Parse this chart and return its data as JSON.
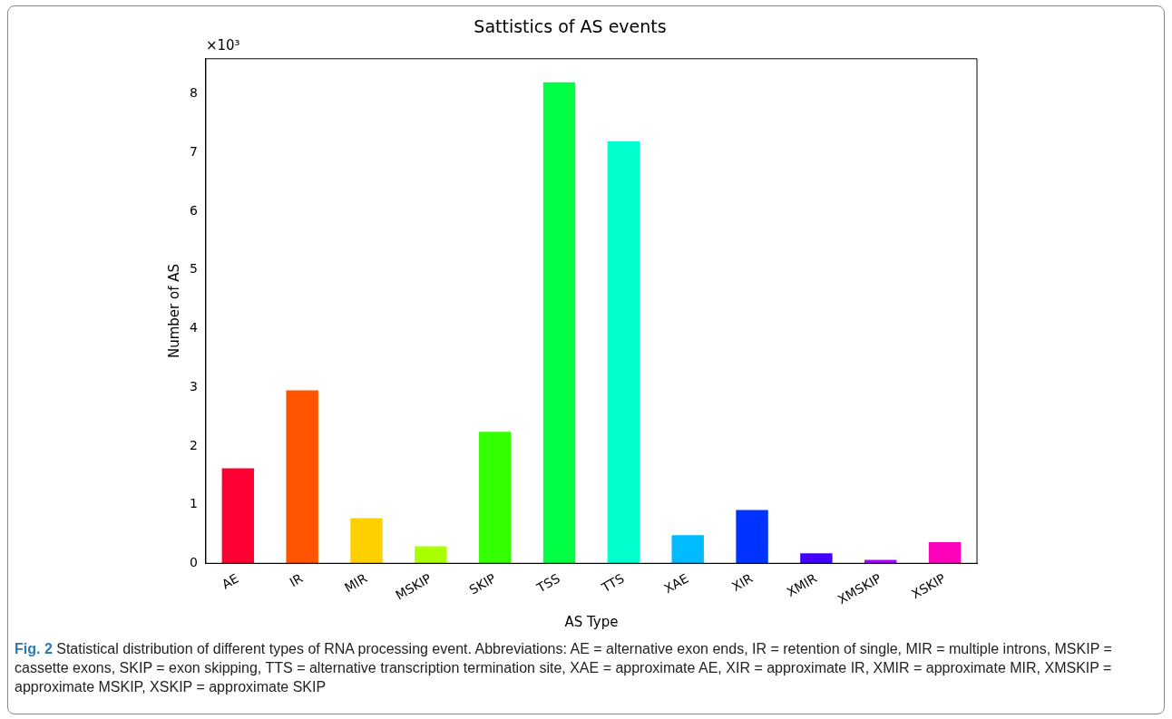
{
  "chart_data": {
    "type": "bar",
    "title": "Sattistics of AS events",
    "xlabel": "AS Type",
    "ylabel": "Number of AS",
    "categories": [
      "AE",
      "IR",
      "MIR",
      "MSKIP",
      "SKIP",
      "TSS",
      "TTS",
      "XAE",
      "XIR",
      "XMIR",
      "XMSKIP",
      "XSKIP"
    ],
    "values": [
      1.62,
      2.95,
      0.77,
      0.29,
      2.24,
      8.2,
      7.19,
      0.48,
      0.91,
      0.17,
      0.06,
      0.36
    ],
    "colors": [
      "#ff0033",
      "#ff5500",
      "#ffd000",
      "#aaff00",
      "#33ff00",
      "#00ff44",
      "#00ffcc",
      "#00bbff",
      "#0033ff",
      "#4400ff",
      "#aa00ff",
      "#ff00bb"
    ],
    "ylim": [
      0,
      8.6
    ],
    "yticks": [
      0,
      1,
      2,
      3,
      4,
      5,
      6,
      7,
      8
    ],
    "grid": false,
    "legend": false,
    "annotations": [
      "×10³",
      "Fig. 2",
      "Statistical distribution of different types of RNA processing event. Abbreviations: AE = alternative exon ends, IR = retention of single, MIR = multiple introns, MSKIP = cassette exons, SKIP = exon skipping, TTS = alternative transcription termination site, XAE = approximate AE, XIR = approximate IR, XMIR = approximate MIR, XMSKIP = approximate MSKIP, XSKIP = approximate SKIP"
    ]
  }
}
